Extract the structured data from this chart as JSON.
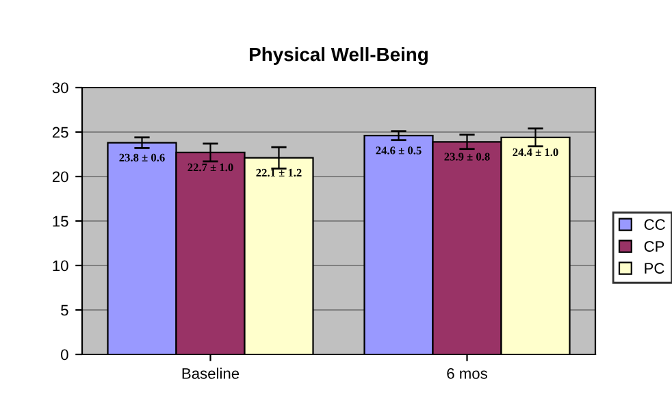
{
  "chart_data": {
    "type": "bar",
    "title": "Physical Well-Being",
    "categories": [
      "Baseline",
      "6 mos"
    ],
    "series": [
      {
        "name": "CC",
        "color": "#9999ff",
        "values": [
          23.8,
          24.6
        ],
        "errors": [
          0.6,
          0.5
        ],
        "value_labels": [
          "23.8 ± 0.6",
          "24.6 ± 0.5"
        ]
      },
      {
        "name": "CP",
        "color": "#993366",
        "values": [
          22.7,
          23.9
        ],
        "errors": [
          1.0,
          0.8
        ],
        "value_labels": [
          "22.7 ± 1.0",
          "23.9 ± 0.8"
        ]
      },
      {
        "name": "PC",
        "color": "#ffffcc",
        "values": [
          22.1,
          24.4
        ],
        "errors": [
          1.2,
          1.0
        ],
        "value_labels": [
          "22.1 ± 1.2",
          "24.4 ± 1.0"
        ]
      }
    ],
    "ylim": [
      0,
      30
    ],
    "yticks": [
      0,
      5,
      10,
      15,
      20,
      25,
      30
    ],
    "grid": "y",
    "legend": "right"
  }
}
